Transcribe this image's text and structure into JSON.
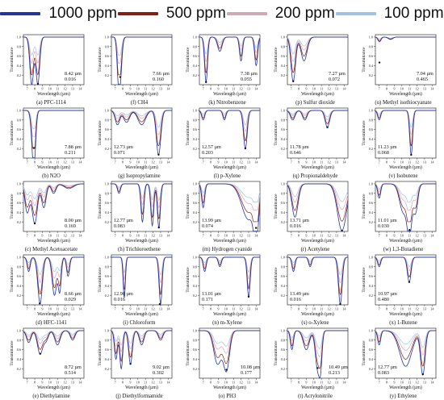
{
  "legend": [
    {
      "label": "1000 ppm",
      "color": "#2233aa"
    },
    {
      "label": "500 ppm",
      "color": "#8b1a10"
    },
    {
      "label": "200 ppm",
      "color": "#d0a8b8"
    },
    {
      "label": "100 ppm",
      "color": "#9fc3e8"
    }
  ],
  "common": {
    "ylabel": "Transmittance",
    "xlabel": "Wavelength (µm)",
    "yticks": [
      "0.2",
      "0.4",
      "0.6",
      "0.8",
      "1.0"
    ],
    "xticks": [
      "7",
      "8",
      "9",
      "10",
      "11",
      "12",
      "13",
      "14"
    ]
  },
  "chart_data": [
    {
      "type": "line",
      "caption": "(a) PFC-1114",
      "wavelength": "8.42 µm",
      "value": "0.016",
      "marker_x": 8.42,
      "marker_y": 0.016,
      "dips": [
        [
          7.6,
          0.25,
          0.995
        ],
        [
          8.4,
          0.25,
          0.984
        ]
      ]
    },
    {
      "type": "line",
      "caption": "(b) N2O",
      "wavelength": "7.88 µm",
      "value": "0.211",
      "marker_x": 7.88,
      "marker_y": 0.211,
      "dips": [
        [
          7.8,
          0.25,
          0.79
        ],
        [
          7.95,
          0.2,
          0.5
        ]
      ]
    },
    {
      "type": "line",
      "caption": "(c) Methyl Acetoacetate",
      "wavelength": "8.00 µm",
      "value": "0.169",
      "marker_x": 8.0,
      "marker_y": 0.169,
      "dips": [
        [
          7.0,
          0.3,
          0.6
        ],
        [
          8.0,
          0.35,
          0.83
        ],
        [
          9.2,
          0.3,
          0.5
        ],
        [
          10.5,
          0.3,
          0.2
        ],
        [
          12.5,
          0.6,
          0.1
        ]
      ]
    },
    {
      "type": "line",
      "caption": "(d) HFC-1141",
      "wavelength": "8.66 µm",
      "value": "0.029",
      "marker_x": 8.66,
      "marker_y": 0.029,
      "dips": [
        [
          7.2,
          0.2,
          0.3
        ],
        [
          8.7,
          0.3,
          0.97
        ],
        [
          10.6,
          0.3,
          0.8
        ],
        [
          11.3,
          0.2,
          0.7
        ],
        [
          12.4,
          0.2,
          0.4
        ]
      ]
    },
    {
      "type": "line",
      "caption": "(e) Diethylamine",
      "wavelength": "8.72 µm",
      "value": "0.514",
      "marker_x": 8.72,
      "marker_y": 0.514,
      "dips": [
        [
          7.2,
          0.3,
          0.25
        ],
        [
          8.7,
          0.35,
          0.49
        ],
        [
          9.5,
          0.3,
          0.2
        ],
        [
          11.0,
          0.35,
          0.3
        ],
        [
          13.0,
          0.3,
          0.2
        ]
      ]
    },
    {
      "type": "line",
      "caption": "(f) CH4",
      "wavelength": "7.66 µm",
      "value": "0.160",
      "marker_x": 7.66,
      "marker_y": 0.16,
      "dips": [
        [
          7.4,
          0.18,
          0.6
        ],
        [
          7.66,
          0.22,
          0.84
        ]
      ]
    },
    {
      "type": "line",
      "caption": "(g) Isopropylamine",
      "wavelength": "12.73 µm",
      "value": "0.071",
      "marker_x": 12.73,
      "marker_y": 0.071,
      "dips": [
        [
          7.3,
          0.3,
          0.3
        ],
        [
          8.5,
          0.4,
          0.25
        ],
        [
          10.5,
          0.5,
          0.3
        ],
        [
          12.73,
          0.3,
          0.93
        ]
      ]
    },
    {
      "type": "line",
      "caption": "(h) Trichloroethene",
      "wavelength": "12.77 µm",
      "value": "0.083",
      "marker_x": 12.77,
      "marker_y": 0.083,
      "dips": [
        [
          7.5,
          0.2,
          0.2
        ],
        [
          10.6,
          0.2,
          0.8
        ],
        [
          11.9,
          0.2,
          0.88
        ],
        [
          12.77,
          0.2,
          0.92
        ]
      ]
    },
    {
      "type": "line",
      "caption": "(i) Chloroform",
      "wavelength": "12.90 µm",
      "value": "0.016",
      "marker_x": 12.9,
      "marker_y": 0.016,
      "dips": [
        [
          8.2,
          0.15,
          0.85
        ],
        [
          13.0,
          0.2,
          0.98
        ]
      ]
    },
    {
      "type": "line",
      "caption": "(j) Diethylformamide",
      "wavelength": "9.02 µm",
      "value": "0.302",
      "marker_x": 9.02,
      "marker_y": 0.302,
      "dips": [
        [
          7.1,
          0.2,
          0.6
        ],
        [
          7.8,
          0.2,
          0.8
        ],
        [
          9.02,
          0.25,
          0.7
        ],
        [
          10.5,
          0.3,
          0.3
        ],
        [
          13.0,
          0.3,
          0.2
        ]
      ]
    },
    {
      "type": "line",
      "caption": "(k) Nitrobenzene",
      "wavelength": "7.38 µm",
      "value": "0.055",
      "marker_x": 7.38,
      "marker_y": 0.055,
      "dips": [
        [
          7.38,
          0.2,
          0.94
        ],
        [
          9.2,
          0.3,
          0.3
        ],
        [
          12.0,
          0.2,
          0.5
        ],
        [
          14.0,
          0.2,
          0.6
        ]
      ]
    },
    {
      "type": "line",
      "caption": "(l) p-Xylene",
      "wavelength": "12.57 µm",
      "value": "0.203",
      "marker_x": 12.57,
      "marker_y": 0.203,
      "dips": [
        [
          7.0,
          0.2,
          0.2
        ],
        [
          9.8,
          0.2,
          0.2
        ],
        [
          12.57,
          0.25,
          0.8
        ]
      ]
    },
    {
      "type": "line",
      "caption": "(m) Hydrogen cyanide",
      "wavelength": "13.99 µm",
      "value": "0.074",
      "marker_x": 13.99,
      "marker_y": 0.074,
      "dips": [
        [
          7.0,
          0.2,
          0.5
        ],
        [
          13.0,
          0.9,
          0.75
        ],
        [
          14.0,
          0.3,
          0.93
        ]
      ]
    },
    {
      "type": "line",
      "caption": "(n) m-Xylene",
      "wavelength": "13.01 µm",
      "value": "0.171",
      "marker_x": 13.01,
      "marker_y": 0.171,
      "dips": [
        [
          7.2,
          0.2,
          0.3
        ],
        [
          9.2,
          0.2,
          0.2
        ],
        [
          13.01,
          0.2,
          0.83
        ]
      ]
    },
    {
      "type": "line",
      "caption": "(o) PH3",
      "wavelength": "10.08 µm",
      "value": "0.177",
      "marker_x": 10.08,
      "marker_y": 0.177,
      "dips": [
        [
          8.9,
          0.5,
          0.7
        ],
        [
          10.08,
          0.4,
          0.82
        ]
      ]
    },
    {
      "type": "line",
      "caption": "(p) Sulfur dioxide",
      "wavelength": "7.27 µm",
      "value": "0.072",
      "marker_x": 7.27,
      "marker_y": 0.072,
      "dips": [
        [
          7.27,
          0.3,
          0.93
        ],
        [
          8.7,
          0.4,
          0.5
        ]
      ]
    },
    {
      "type": "line",
      "caption": "(q) Propionaldehyde",
      "wavelength": "11.78 µm",
      "value": "0.646",
      "marker_x": 11.78,
      "marker_y": 0.646,
      "dips": [
        [
          7.2,
          0.3,
          0.2
        ],
        [
          8.8,
          0.3,
          0.2
        ],
        [
          11.78,
          0.3,
          0.35
        ]
      ]
    },
    {
      "type": "line",
      "caption": "(r) Acetylene",
      "wavelength": "13.71 µm",
      "value": "0.016",
      "marker_x": 13.71,
      "marker_y": 0.016,
      "dips": [
        [
          7.5,
          0.4,
          0.7
        ],
        [
          13.71,
          0.6,
          0.98
        ]
      ]
    },
    {
      "type": "line",
      "caption": "(s) o-Xylene",
      "wavelength": "13.49 µm",
      "value": "0.016",
      "marker_x": 13.49,
      "marker_y": 0.016,
      "dips": [
        [
          7.3,
          0.2,
          0.3
        ],
        [
          9.5,
          0.2,
          0.2
        ],
        [
          13.49,
          0.25,
          0.98
        ]
      ]
    },
    {
      "type": "line",
      "caption": "(t) Acrylonitrile",
      "wavelength": "10.49 µm",
      "value": "0.213",
      "marker_x": 10.49,
      "marker_y": 0.213,
      "dips": [
        [
          7.1,
          0.2,
          0.4
        ],
        [
          9.0,
          0.4,
          0.4
        ],
        [
          10.49,
          0.3,
          0.79
        ],
        [
          10.9,
          0.2,
          0.6
        ]
      ]
    },
    {
      "type": "line",
      "caption": "(u) Methyl isothiocyanate",
      "wavelength": "7.04 µm",
      "value": "0.465",
      "marker_x": 7.04,
      "marker_y": 0.465,
      "dips": [
        [
          7.04,
          0.2,
          0.1
        ],
        [
          8.5,
          0.3,
          0.05
        ]
      ]
    },
    {
      "type": "line",
      "caption": "(v) Isobutene",
      "wavelength": "11.23 µm",
      "value": "0.068",
      "marker_x": 11.23,
      "marker_y": 0.068,
      "dips": [
        [
          7.0,
          0.2,
          0.2
        ],
        [
          11.23,
          0.2,
          0.93
        ]
      ]
    },
    {
      "type": "line",
      "caption": "(w) 1,3-Butadiene",
      "wavelength": "11.01 µm",
      "value": "0.030",
      "marker_x": 11.01,
      "marker_y": 0.03,
      "dips": [
        [
          7.0,
          0.2,
          0.3
        ],
        [
          10.2,
          0.5,
          0.6
        ],
        [
          11.01,
          0.3,
          0.97
        ],
        [
          11.8,
          0.3,
          0.6
        ]
      ]
    },
    {
      "type": "line",
      "caption": "(x) 1-Butene",
      "wavelength": "10.97 µm",
      "value": "0.480",
      "marker_x": 10.97,
      "marker_y": 0.48,
      "dips": [
        [
          7.0,
          0.2,
          0.2
        ],
        [
          10.97,
          0.25,
          0.52
        ]
      ]
    },
    {
      "type": "line",
      "caption": "(y) Ethylene",
      "wavelength": "12.77 µm",
      "value": "0.083",
      "marker_x": 12.77,
      "marker_y": 0.083,
      "dips": [
        [
          7.0,
          0.2,
          0.3
        ],
        [
          10.5,
          0.8,
          0.75
        ],
        [
          12.77,
          0.3,
          0.92
        ]
      ]
    }
  ]
}
